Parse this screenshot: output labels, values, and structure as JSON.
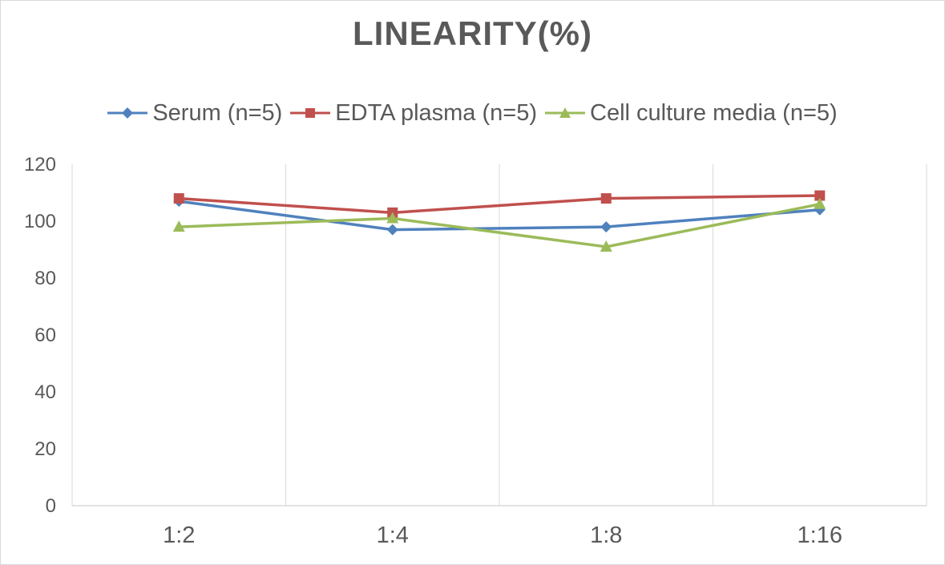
{
  "chart_data": {
    "type": "line",
    "title": "LINEARITY(%)",
    "categories": [
      "1:2",
      "1:4",
      "1:8",
      "1:16"
    ],
    "series": [
      {
        "name": "Serum (n=5)",
        "values": [
          107,
          97,
          98,
          104
        ],
        "color": "#4f81bd",
        "marker": "diamond"
      },
      {
        "name": "EDTA plasma (n=5)",
        "values": [
          108,
          103,
          108,
          109
        ],
        "color": "#c0504d",
        "marker": "square"
      },
      {
        "name": "Cell culture media (n=5)",
        "values": [
          98,
          101,
          91,
          106
        ],
        "color": "#9bbb59",
        "marker": "triangle"
      }
    ],
    "ylim": [
      0,
      120
    ],
    "yticks": [
      0,
      20,
      40,
      60,
      80,
      100,
      120
    ],
    "xlabel": "",
    "ylabel": "",
    "grid": "vertical",
    "legend_position": "top"
  }
}
